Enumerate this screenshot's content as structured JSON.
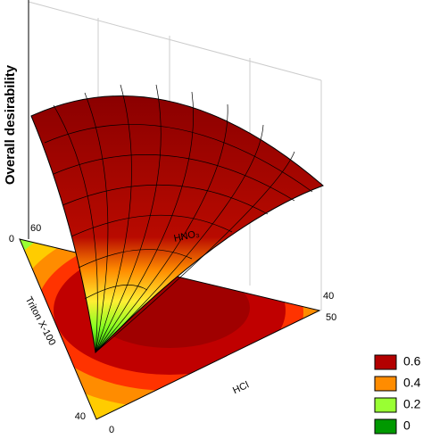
{
  "chart_data": {
    "type": "surface3d",
    "z_label": "Overall desirability",
    "axis_labels": [
      "HNO₃",
      "Triton X-100",
      "HCl"
    ],
    "corner_ticks": [
      60,
      0,
      40,
      0,
      40,
      50
    ],
    "legend": [
      {
        "value": 0.6,
        "color": "#b30000"
      },
      {
        "value": 0.4,
        "color": "#ff8c00"
      },
      {
        "value": 0.2,
        "color": "#99ff33"
      },
      {
        "value": 0,
        "color": "#009900"
      }
    ]
  }
}
